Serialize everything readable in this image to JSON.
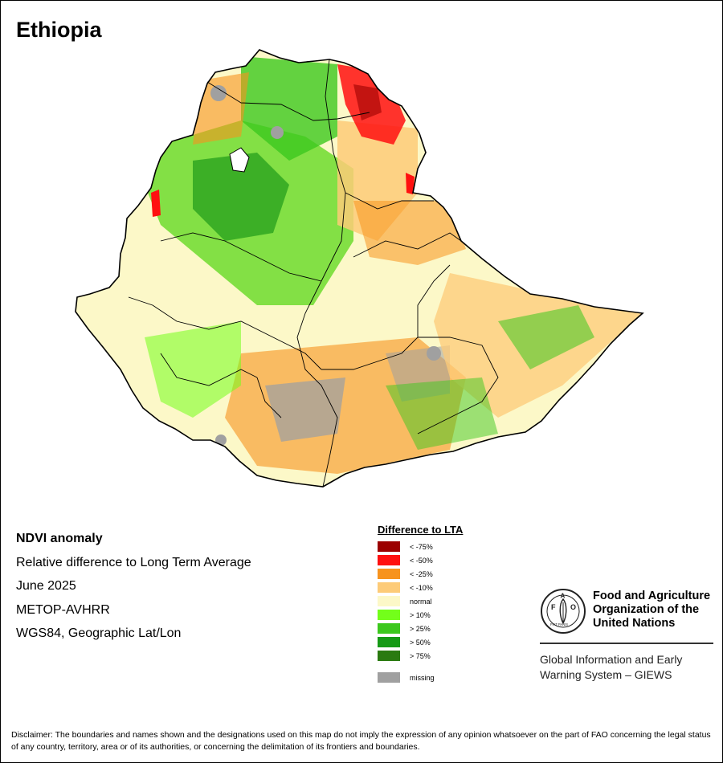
{
  "title": "Ethiopia",
  "info": {
    "heading": "NDVI anomaly",
    "subtitle": "Relative difference to Long Term Average",
    "date": "June 2025",
    "sensor": "METOP-AVHRR",
    "projection": "WGS84, Geographic Lat/Lon"
  },
  "legend": {
    "title": "Difference to LTA",
    "items": [
      {
        "label": "< -75%",
        "color": "#9b0000"
      },
      {
        "label": "< -50%",
        "color": "#ff1010"
      },
      {
        "label": "< -25%",
        "color": "#f7931e"
      },
      {
        "label": "< -10%",
        "color": "#fdcb78"
      },
      {
        "label": "normal",
        "color": "#fcf8c8"
      },
      {
        "label": "> 10%",
        "color": "#73ff1a"
      },
      {
        "label": "> 25%",
        "color": "#3cc81e"
      },
      {
        "label": "> 50%",
        "color": "#169a16"
      },
      {
        "label": "> 75%",
        "color": "#2a7a10"
      }
    ],
    "missing": {
      "label": "missing",
      "color": "#a0a0a0"
    }
  },
  "org": {
    "emblem_text": "FAO",
    "emblem_motto": "FIAT PANIS",
    "name": "Food and Agriculture Organization of the United Nations",
    "system": "Global Information and Early Warning System – GIEWS"
  },
  "disclaimer": "Disclaimer: The boundaries and names shown and the designations used on this map do not imply the expression of any opinion whatsoever on the part of FAO concerning the legal status of any country, territory, area or of its authorities, or concerning the delimitation of its frontiers and boundaries."
}
